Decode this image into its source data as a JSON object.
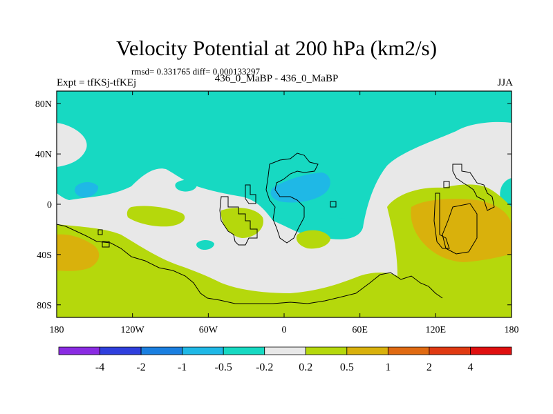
{
  "header": {
    "title": "Velocity Potential at 200 hPa (km2/s)",
    "stats": "rmsd= 0.331765 diff= 0.000133297",
    "experiment": "Expt = tfKSj-tfKEj",
    "cases": "436_0_MaBP - 436_0_MaBP",
    "season": "JJA"
  },
  "chart_data": {
    "type": "heatmap",
    "title": "Velocity Potential at 200 hPa (km2/s)",
    "projection": "cylindrical equidistant",
    "xlim": [
      -180,
      180
    ],
    "ylim": [
      -90,
      90
    ],
    "xticks": [
      {
        "value": -180,
        "label": "180"
      },
      {
        "value": -120,
        "label": "120W"
      },
      {
        "value": -60,
        "label": "60W"
      },
      {
        "value": 0,
        "label": "0"
      },
      {
        "value": 60,
        "label": "60E"
      },
      {
        "value": 120,
        "label": "120E"
      },
      {
        "value": 180,
        "label": "180"
      }
    ],
    "yticks": [
      {
        "value": 80,
        "label": "80N"
      },
      {
        "value": 40,
        "label": "40N"
      },
      {
        "value": 0,
        "label": "0"
      },
      {
        "value": -40,
        "label": "40S"
      },
      {
        "value": -80,
        "label": "80S"
      }
    ],
    "colorbar": {
      "boundaries": [
        "-4",
        "-2",
        "-1",
        "-0.5",
        "-0.2",
        "0.2",
        "0.5",
        "1",
        "2",
        "4"
      ],
      "colors": [
        "#8a2be2",
        "#2f3fdd",
        "#1a7fe0",
        "#1fb8e6",
        "#17d9c2",
        "#e8e8e8",
        "#b5d80c",
        "#d9b10c",
        "#e06a12",
        "#e03a12",
        "#e01010"
      ]
    },
    "fields": {
      "background_level": "-0.5 to -0.2",
      "regions": [
        {
          "name": "northern-high-latitudes",
          "level": "-0.5 to -0.2"
        },
        {
          "name": "tropical-neutral-band",
          "level": "-0.2 to 0.2"
        },
        {
          "name": "southern-high-latitudes",
          "level": "0.2 to 0.5"
        },
        {
          "name": "east-pacific-minimum",
          "level": "-1 to -0.5"
        },
        {
          "name": "north-africa-minimum",
          "level": "-1 to -0.5"
        },
        {
          "name": "indo-pacific-maximum",
          "level": "0.5 to 1"
        },
        {
          "name": "south-pacific-maximum",
          "level": "0.5 to 1"
        }
      ]
    }
  }
}
